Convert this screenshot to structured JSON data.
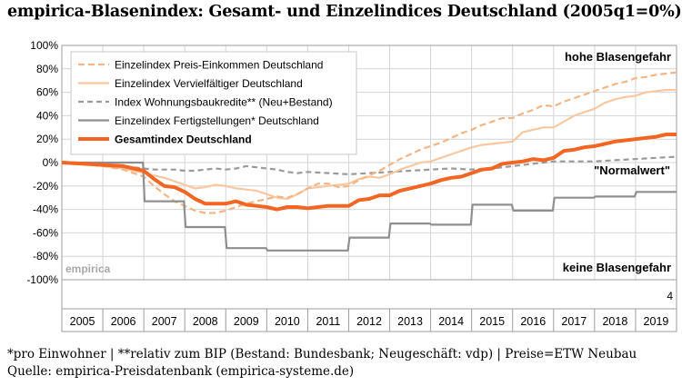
{
  "title": "empirica-Blasenindex: Gesamt- und Einzelindices Deutschland (2005q1=0%)",
  "footnote_line1": "*pro Einwohner | **relativ zum BIP (Bestand: Bundesbank; Neugeschäft: vdp) | Preise=ETW Neubau",
  "footnote_line2": "Quelle: empirica-Preisdatenbank (empirica-systeme.de)",
  "colors": {
    "preis_einkommen": "#f3b585",
    "vervielfaeltiger": "#f8c8a0",
    "wohnungsbaukredite": "#9a9a9a",
    "fertigstellungen": "#8f8f8f",
    "gesamtindex": "#f26522",
    "grid": "#d4d4d4",
    "frame": "#9e9e9e"
  },
  "chart_data": {
    "type": "line",
    "ylim": [
      -100,
      100
    ],
    "y_ticks": [
      "100%",
      "80%",
      "60%",
      "40%",
      "20%",
      "0%",
      "-20%",
      "-40%",
      "-60%",
      "-80%",
      "-100%"
    ],
    "x_ticks": [
      "2005",
      "2006",
      "2007",
      "2008",
      "2009",
      "2010",
      "2011",
      "2012",
      "2013",
      "2014",
      "2015",
      "2016",
      "2017",
      "2018",
      "2019"
    ],
    "x_range": [
      2005.0,
      2020.0
    ],
    "legend_position": "top-left",
    "grid": true,
    "annotations": {
      "top_right": "hohe Blasengefahr",
      "normalwert": "\"Normalwert\"",
      "bottom_right": "keine Blasengefahr",
      "watermark": "empirica",
      "corner_number": "4"
    },
    "series": [
      {
        "name": "Einzelindex Preis-Einkommen Deutschland",
        "style": "dashed",
        "points": [
          [
            2005.0,
            0
          ],
          [
            2005.5,
            -1
          ],
          [
            2006.0,
            -3
          ],
          [
            2006.5,
            -6
          ],
          [
            2007.0,
            -12
          ],
          [
            2007.25,
            -20
          ],
          [
            2007.5,
            -27
          ],
          [
            2007.75,
            -33
          ],
          [
            2008.0,
            -37
          ],
          [
            2008.25,
            -41
          ],
          [
            2008.5,
            -43
          ],
          [
            2008.75,
            -43
          ],
          [
            2009.0,
            -41
          ],
          [
            2009.25,
            -38
          ],
          [
            2009.5,
            -35
          ],
          [
            2009.75,
            -33
          ],
          [
            2010.0,
            -31
          ],
          [
            2010.25,
            -29
          ],
          [
            2010.5,
            -30
          ],
          [
            2010.75,
            -27
          ],
          [
            2011.0,
            -22
          ],
          [
            2011.25,
            -18
          ],
          [
            2011.5,
            -18
          ],
          [
            2011.75,
            -21
          ],
          [
            2012.0,
            -20
          ],
          [
            2012.25,
            -15
          ],
          [
            2012.5,
            -11
          ],
          [
            2012.75,
            -7
          ],
          [
            2013.0,
            -2
          ],
          [
            2013.25,
            3
          ],
          [
            2013.5,
            7
          ],
          [
            2013.75,
            11
          ],
          [
            2014.0,
            14
          ],
          [
            2014.25,
            17
          ],
          [
            2014.5,
            21
          ],
          [
            2014.75,
            25
          ],
          [
            2015.0,
            28
          ],
          [
            2015.25,
            32
          ],
          [
            2015.5,
            35
          ],
          [
            2015.75,
            38
          ],
          [
            2016.0,
            38
          ],
          [
            2016.25,
            42
          ],
          [
            2016.5,
            45
          ],
          [
            2016.75,
            49
          ],
          [
            2017.0,
            48
          ],
          [
            2017.25,
            52
          ],
          [
            2017.5,
            55
          ],
          [
            2017.75,
            58
          ],
          [
            2018.0,
            61
          ],
          [
            2018.25,
            64
          ],
          [
            2018.5,
            67
          ],
          [
            2018.75,
            69
          ],
          [
            2019.0,
            72
          ],
          [
            2019.25,
            73
          ],
          [
            2019.5,
            75
          ],
          [
            2019.75,
            76
          ],
          [
            2020.0,
            77
          ]
        ]
      },
      {
        "name": "Einzelindex Vervielfältiger Deutschland",
        "style": "solid",
        "points": [
          [
            2005.0,
            0
          ],
          [
            2005.5,
            -1
          ],
          [
            2006.0,
            -3
          ],
          [
            2006.5,
            -5
          ],
          [
            2007.0,
            -9
          ],
          [
            2007.25,
            -11
          ],
          [
            2007.5,
            -13
          ],
          [
            2007.75,
            -16
          ],
          [
            2008.0,
            -19
          ],
          [
            2008.25,
            -22
          ],
          [
            2008.5,
            -21
          ],
          [
            2008.75,
            -19
          ],
          [
            2009.0,
            -20
          ],
          [
            2009.25,
            -22
          ],
          [
            2009.5,
            -23
          ],
          [
            2009.75,
            -24
          ],
          [
            2010.0,
            -27
          ],
          [
            2010.25,
            -30
          ],
          [
            2010.5,
            -31
          ],
          [
            2010.75,
            -27
          ],
          [
            2011.0,
            -22
          ],
          [
            2011.25,
            -21
          ],
          [
            2011.5,
            -20
          ],
          [
            2011.75,
            -19
          ],
          [
            2012.0,
            -18
          ],
          [
            2012.25,
            -14
          ],
          [
            2012.5,
            -12
          ],
          [
            2012.75,
            -13
          ],
          [
            2013.0,
            -10
          ],
          [
            2013.25,
            -6
          ],
          [
            2013.5,
            -3
          ],
          [
            2013.75,
            0
          ],
          [
            2014.0,
            1
          ],
          [
            2014.25,
            4
          ],
          [
            2014.5,
            7
          ],
          [
            2014.75,
            10
          ],
          [
            2015.0,
            13
          ],
          [
            2015.25,
            15
          ],
          [
            2015.5,
            16
          ],
          [
            2015.75,
            17
          ],
          [
            2016.0,
            18
          ],
          [
            2016.25,
            26
          ],
          [
            2016.5,
            28
          ],
          [
            2016.75,
            30
          ],
          [
            2017.0,
            30
          ],
          [
            2017.25,
            35
          ],
          [
            2017.5,
            40
          ],
          [
            2017.75,
            43
          ],
          [
            2018.0,
            46
          ],
          [
            2018.25,
            51
          ],
          [
            2018.5,
            54
          ],
          [
            2018.75,
            56
          ],
          [
            2019.0,
            57
          ],
          [
            2019.25,
            60
          ],
          [
            2019.5,
            61
          ],
          [
            2019.75,
            62
          ],
          [
            2020.0,
            62
          ]
        ]
      },
      {
        "name": "Index Wohnungsbaukredite** (Neu+Bestand)",
        "style": "dashed",
        "points": [
          [
            2005.0,
            0
          ],
          [
            2005.5,
            -1
          ],
          [
            2006.0,
            -2
          ],
          [
            2006.5,
            -3
          ],
          [
            2007.0,
            -5
          ],
          [
            2007.25,
            -6
          ],
          [
            2007.5,
            -6
          ],
          [
            2007.75,
            -6
          ],
          [
            2008.0,
            -7
          ],
          [
            2008.25,
            -7
          ],
          [
            2008.5,
            -6
          ],
          [
            2008.75,
            -5
          ],
          [
            2009.0,
            -6
          ],
          [
            2009.25,
            -5
          ],
          [
            2009.5,
            -3
          ],
          [
            2009.75,
            -4
          ],
          [
            2010.0,
            -5
          ],
          [
            2010.25,
            -6
          ],
          [
            2010.5,
            -8
          ],
          [
            2010.75,
            -9
          ],
          [
            2011.0,
            -8
          ],
          [
            2011.5,
            -9
          ],
          [
            2012.0,
            -10
          ],
          [
            2012.5,
            -9
          ],
          [
            2013.0,
            -8
          ],
          [
            2013.5,
            -7
          ],
          [
            2014.0,
            -6
          ],
          [
            2014.5,
            -5
          ],
          [
            2015.0,
            -6
          ],
          [
            2015.5,
            -5
          ],
          [
            2015.75,
            -4
          ],
          [
            2016.0,
            -3
          ],
          [
            2016.25,
            -2
          ],
          [
            2016.5,
            -1
          ],
          [
            2016.75,
            0
          ],
          [
            2017.0,
            1
          ],
          [
            2017.5,
            1
          ],
          [
            2018.0,
            1
          ],
          [
            2018.5,
            2
          ],
          [
            2019.0,
            3
          ],
          [
            2019.5,
            4
          ],
          [
            2020.0,
            5
          ]
        ]
      },
      {
        "name": "Einzelindex Fertigstellungen* Deutschland",
        "style": "solid",
        "points": [
          [
            2005.0,
            0
          ],
          [
            2006.0,
            0
          ],
          [
            2006.98,
            0
          ],
          [
            2007.02,
            -33
          ],
          [
            2007.98,
            -33
          ],
          [
            2008.02,
            -55
          ],
          [
            2008.98,
            -55
          ],
          [
            2009.02,
            -73
          ],
          [
            2009.98,
            -73
          ],
          [
            2010.02,
            -75
          ],
          [
            2011.98,
            -75
          ],
          [
            2012.02,
            -64
          ],
          [
            2012.98,
            -64
          ],
          [
            2013.02,
            -52
          ],
          [
            2013.98,
            -52
          ],
          [
            2014.02,
            -53
          ],
          [
            2014.98,
            -53
          ],
          [
            2015.02,
            -36
          ],
          [
            2015.98,
            -36
          ],
          [
            2016.02,
            -41
          ],
          [
            2016.98,
            -41
          ],
          [
            2017.02,
            -30
          ],
          [
            2017.98,
            -30
          ],
          [
            2018.02,
            -29
          ],
          [
            2018.98,
            -29
          ],
          [
            2019.02,
            -25
          ],
          [
            2020.0,
            -25
          ]
        ]
      },
      {
        "name": "Gesamtindex Deutschland",
        "style": "bold",
        "points": [
          [
            2005.0,
            0
          ],
          [
            2005.5,
            -1
          ],
          [
            2006.0,
            -2
          ],
          [
            2006.5,
            -3
          ],
          [
            2007.0,
            -7
          ],
          [
            2007.25,
            -14
          ],
          [
            2007.5,
            -20
          ],
          [
            2007.75,
            -21
          ],
          [
            2008.0,
            -25
          ],
          [
            2008.25,
            -31
          ],
          [
            2008.5,
            -35
          ],
          [
            2008.75,
            -35
          ],
          [
            2009.0,
            -35
          ],
          [
            2009.25,
            -33
          ],
          [
            2009.5,
            -36
          ],
          [
            2009.75,
            -37
          ],
          [
            2010.0,
            -38
          ],
          [
            2010.25,
            -40
          ],
          [
            2010.5,
            -38
          ],
          [
            2010.75,
            -38
          ],
          [
            2011.0,
            -39
          ],
          [
            2011.25,
            -38
          ],
          [
            2011.5,
            -37
          ],
          [
            2011.75,
            -37
          ],
          [
            2012.0,
            -37
          ],
          [
            2012.25,
            -32
          ],
          [
            2012.5,
            -31
          ],
          [
            2012.75,
            -28
          ],
          [
            2013.0,
            -28
          ],
          [
            2013.25,
            -24
          ],
          [
            2013.5,
            -22
          ],
          [
            2013.75,
            -20
          ],
          [
            2014.0,
            -18
          ],
          [
            2014.25,
            -15
          ],
          [
            2014.5,
            -13
          ],
          [
            2014.75,
            -12
          ],
          [
            2015.0,
            -9
          ],
          [
            2015.25,
            -6
          ],
          [
            2015.5,
            -5
          ],
          [
            2015.75,
            -1
          ],
          [
            2016.0,
            0
          ],
          [
            2016.25,
            1
          ],
          [
            2016.5,
            3
          ],
          [
            2016.75,
            2
          ],
          [
            2017.0,
            4
          ],
          [
            2017.25,
            10
          ],
          [
            2017.5,
            11
          ],
          [
            2017.75,
            13
          ],
          [
            2018.0,
            14
          ],
          [
            2018.25,
            16
          ],
          [
            2018.5,
            18
          ],
          [
            2018.75,
            19
          ],
          [
            2019.0,
            20
          ],
          [
            2019.25,
            21
          ],
          [
            2019.5,
            22
          ],
          [
            2019.75,
            24
          ],
          [
            2020.0,
            24
          ]
        ]
      }
    ]
  }
}
